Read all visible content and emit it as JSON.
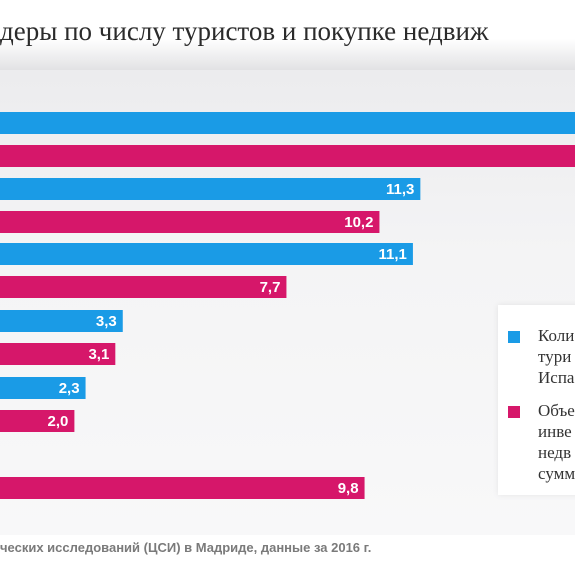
{
  "title": "деры по числу туристов и покупке недвиж",
  "source": "ческих исследований (ЦСИ) в Мадриде, данные за 2016 г.",
  "colors": {
    "tourists": "#1a9be6",
    "realestate": "#d6176a"
  },
  "legend": {
    "items": [
      {
        "label": "Коли\nтури\nИспа",
        "color": "#1a9be6"
      },
      {
        "label": "Объе\nинве\nнедв\nсумм",
        "color": "#d6176a"
      }
    ]
  },
  "chart_data": {
    "type": "bar",
    "orientation": "horizontal",
    "title": "деры по числу туристов и покупке недвиж",
    "categories": [
      "",
      "",
      "",
      "",
      "",
      ""
    ],
    "series": [
      {
        "values": [
          null,
          11.3,
          11.1,
          3.3,
          2.3,
          null
        ],
        "labels": [
          "",
          "11,3",
          "11,1",
          "3,3",
          "2,3",
          ""
        ]
      },
      {
        "values": [
          null,
          10.2,
          7.7,
          3.1,
          2.0,
          9.8
        ],
        "labels": [
          "",
          "10,2",
          "7,7",
          "3,1",
          "2,0",
          "9,8"
        ]
      }
    ],
    "grid": false,
    "legend_position": "right"
  }
}
